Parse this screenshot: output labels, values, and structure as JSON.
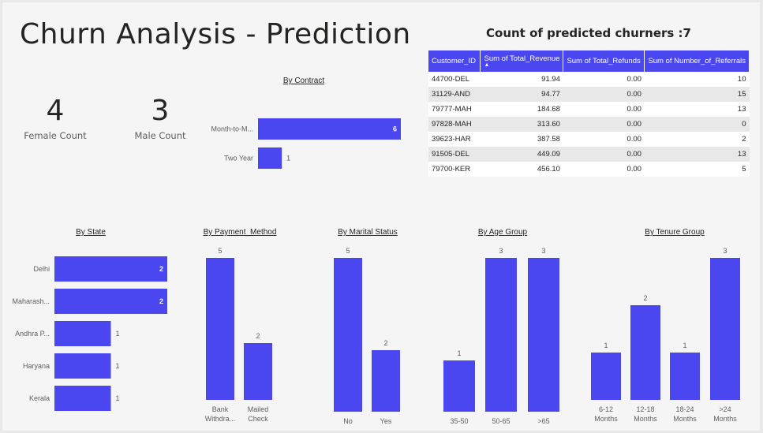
{
  "title": "Churn Analysis - Prediction",
  "cards": [
    {
      "value": "4",
      "label": "Female Count"
    },
    {
      "value": "3",
      "label": "Male Count"
    }
  ],
  "table": {
    "title": "Count of predicted churners :7",
    "headers": [
      "Customer_ID",
      "Sum of Total_Revenue",
      "Sum of Total_Refunds",
      "Sum of Number_of_Referrals"
    ],
    "sort_indicator": "▲",
    "rows": [
      [
        "44700-DEL",
        "91.94",
        "0.00",
        "10"
      ],
      [
        "31129-AND",
        "94.77",
        "0.00",
        "15"
      ],
      [
        "79777-MAH",
        "184.68",
        "0.00",
        "13"
      ],
      [
        "97828-MAH",
        "313.60",
        "0.00",
        "0"
      ],
      [
        "39623-HAR",
        "387.58",
        "0.00",
        "2"
      ],
      [
        "91505-DEL",
        "449.09",
        "0.00",
        "13"
      ],
      [
        "79700-KER",
        "456.10",
        "0.00",
        "5"
      ]
    ]
  },
  "colors": {
    "bar": "#4a46f0",
    "text": "#252423",
    "subtext": "#605e5c"
  },
  "chart_data": [
    {
      "id": "contract",
      "type": "bar",
      "orientation": "horizontal",
      "title": "By Contract",
      "categories": [
        "Month-to-M...",
        "Two Year"
      ],
      "values": [
        6,
        1
      ]
    },
    {
      "id": "state",
      "type": "bar",
      "orientation": "horizontal",
      "title": "By State",
      "categories": [
        "Delhi",
        "Maharash...",
        "Andhra P...",
        "Haryana",
        "Kerala"
      ],
      "values": [
        2,
        2,
        1,
        1,
        1
      ]
    },
    {
      "id": "payment",
      "type": "bar",
      "orientation": "vertical",
      "title": "By Payment_Method",
      "categories": [
        "Bank Withdra...",
        "Mailed Check"
      ],
      "values": [
        5,
        2
      ]
    },
    {
      "id": "marital",
      "type": "bar",
      "orientation": "vertical",
      "title": "By Marital Status",
      "categories": [
        "No",
        "Yes"
      ],
      "values": [
        5,
        2
      ]
    },
    {
      "id": "age",
      "type": "bar",
      "orientation": "vertical",
      "title": "By Age Group",
      "categories": [
        "35-50",
        "50-65",
        ">65"
      ],
      "values": [
        1,
        3,
        3
      ]
    },
    {
      "id": "tenure",
      "type": "bar",
      "orientation": "vertical",
      "title": "By Tenure Group",
      "categories": [
        "6-12 Months",
        "12-18 Months",
        "18-24 Months",
        ">24 Months"
      ],
      "values": [
        1,
        2,
        1,
        3
      ]
    }
  ]
}
